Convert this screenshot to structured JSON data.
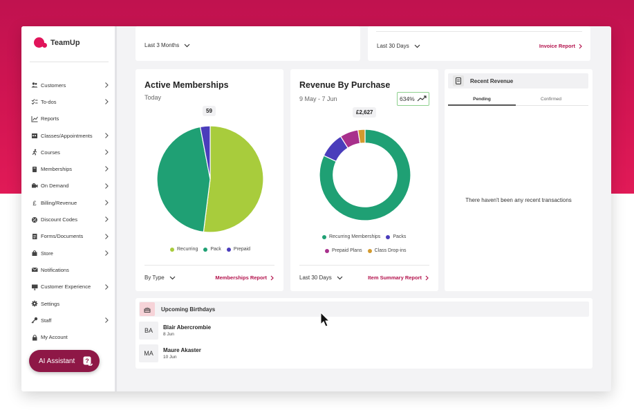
{
  "app": {
    "name": "TeamUp"
  },
  "sidebar": {
    "items": [
      {
        "label": "Customers",
        "icon": "users-icon",
        "chevron": true
      },
      {
        "label": "To-dos",
        "icon": "checklist-icon",
        "chevron": true
      },
      {
        "label": "Reports",
        "icon": "chart-icon",
        "chevron": false
      },
      {
        "label": "Classes/Appointments",
        "icon": "calendar-icon",
        "chevron": true
      },
      {
        "label": "Courses",
        "icon": "running-icon",
        "chevron": true
      },
      {
        "label": "Memberships",
        "icon": "membership-icon",
        "chevron": true
      },
      {
        "label": "On Demand",
        "icon": "video-icon",
        "chevron": true
      },
      {
        "label": "Billing/Revenue",
        "icon": "pound-icon",
        "chevron": true
      },
      {
        "label": "Discount Codes",
        "icon": "discount-icon",
        "chevron": true
      },
      {
        "label": "Forms/Documents",
        "icon": "document-icon",
        "chevron": true
      },
      {
        "label": "Store",
        "icon": "bag-icon",
        "chevron": true
      },
      {
        "label": "Notifications",
        "icon": "envelope-icon",
        "chevron": false
      },
      {
        "label": "Customer Experience",
        "icon": "monitor-icon",
        "chevron": true
      },
      {
        "label": "Settings",
        "icon": "gear-icon",
        "chevron": false
      },
      {
        "label": "Staff",
        "icon": "key-icon",
        "chevron": true
      },
      {
        "label": "My Account",
        "icon": "lock-icon",
        "chevron": false
      }
    ],
    "ai_button": "AI Assistant"
  },
  "top_cards": {
    "left_dropdown": "Last 3 Months",
    "right_dropdown": "Last 30 Days",
    "right_link": "Invoice Report"
  },
  "active_memberships": {
    "title": "Active Memberships",
    "subtitle": "Today",
    "tooltip": "59",
    "legend": [
      "Recurring",
      "Pack",
      "Prepaid"
    ],
    "filter": "By Type",
    "link": "Memberships Report"
  },
  "revenue_by_purchase": {
    "title": "Revenue By Purchase",
    "subtitle": "9 May - 7 Jun",
    "badge": "634%",
    "tooltip": "£2,627",
    "legend": [
      "Recurring Memberships",
      "Packs",
      "Prepaid Plans",
      "Class Drop-ins"
    ],
    "filter": "Last 30 Days",
    "link": "Item Summary Report"
  },
  "recent_revenue": {
    "title": "Recent Revenue",
    "tabs": [
      "Pending",
      "Confirmed"
    ],
    "empty_message": "There haven't been any recent transactions"
  },
  "birthdays": {
    "title": "Upcoming Birthdays",
    "people": [
      {
        "initials": "BA",
        "name": "Blair Abercrombie",
        "date": "8 Jun"
      },
      {
        "initials": "MA",
        "name": "Maure Akaster",
        "date": "10 Jun"
      }
    ]
  },
  "chart_data": [
    {
      "type": "pie",
      "categories": [
        "Recurring",
        "Pack",
        "Prepaid"
      ],
      "values": [
        52,
        45,
        3
      ],
      "colors": [
        "#a8cc3c",
        "#1fa074",
        "#4a3dbb"
      ]
    },
    {
      "type": "pie",
      "categories": [
        "Recurring Memberships",
        "Packs",
        "Prepaid Plans",
        "Class Drop-ins"
      ],
      "values": [
        82,
        9,
        6.5,
        2.5
      ],
      "colors": [
        "#1fa074",
        "#4a3dbb",
        "#a8308c",
        "#d39a2e"
      ]
    }
  ]
}
